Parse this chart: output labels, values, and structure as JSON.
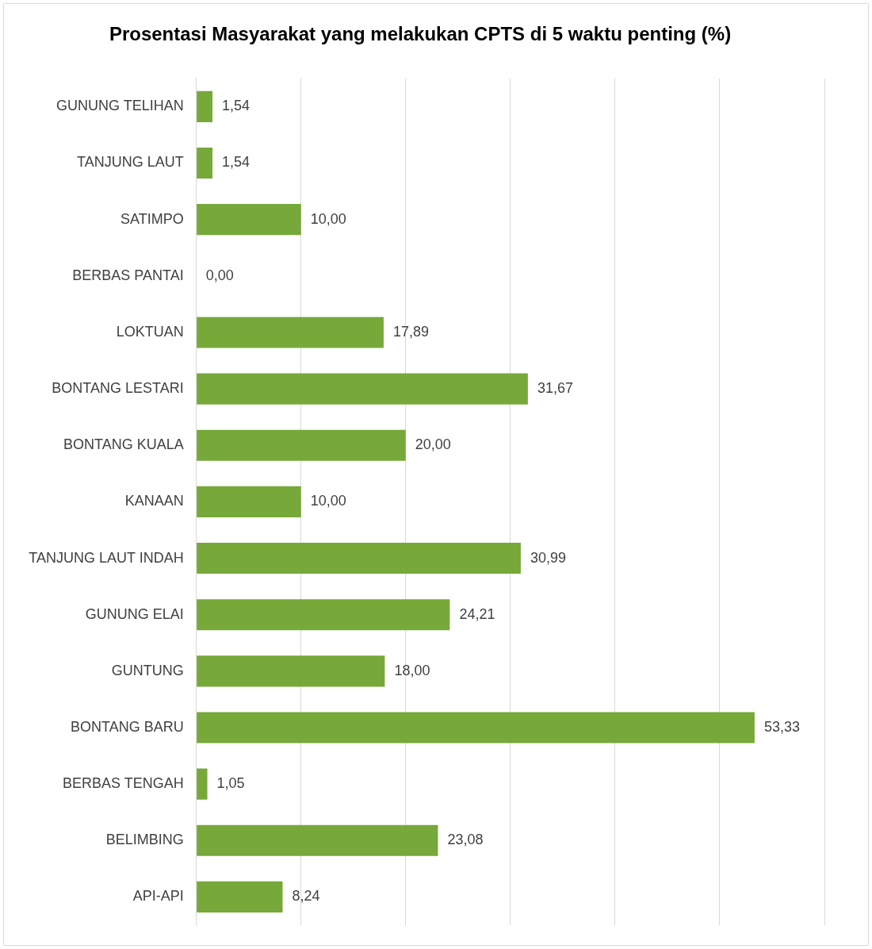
{
  "chart_data": {
    "type": "bar",
    "orientation": "horizontal",
    "title": "Prosentasi Masyarakat yang melakukan CPTS di 5 waktu penting (%)",
    "categories": [
      "GUNUNG TELIHAN",
      "TANJUNG LAUT",
      "SATIMPO",
      "BERBAS PANTAI",
      "LOKTUAN",
      "BONTANG LESTARI",
      "BONTANG KUALA",
      "KANAAN",
      "TANJUNG LAUT INDAH",
      "GUNUNG ELAI",
      "GUNTUNG",
      "BONTANG BARU",
      "BERBAS TENGAH",
      "BELIMBING",
      "API-API"
    ],
    "values": [
      1.54,
      1.54,
      10.0,
      0.0,
      17.89,
      31.67,
      20.0,
      10.0,
      30.99,
      24.21,
      18.0,
      53.33,
      1.05,
      23.08,
      8.24
    ],
    "value_labels": [
      "1,54",
      "1,54",
      "10,00",
      "0,00",
      "17,89",
      "31,67",
      "20,00",
      "10,00",
      "30,99",
      "24,21",
      "18,00",
      "53,33",
      "1,05",
      "23,08",
      "8,24"
    ],
    "color": "#77a83a",
    "xlim": [
      0,
      60
    ],
    "xticks": [
      {
        "value": 0,
        "label": null
      },
      {
        "value": 10,
        "label": null
      },
      {
        "value": 20,
        "label": null
      },
      {
        "value": 30,
        "label": null
      },
      {
        "value": 40,
        "label": null
      },
      {
        "value": 50,
        "label": null
      },
      {
        "value": 60,
        "label": null
      }
    ],
    "grid": "x",
    "tick_labels": "y",
    "legend": false
  }
}
